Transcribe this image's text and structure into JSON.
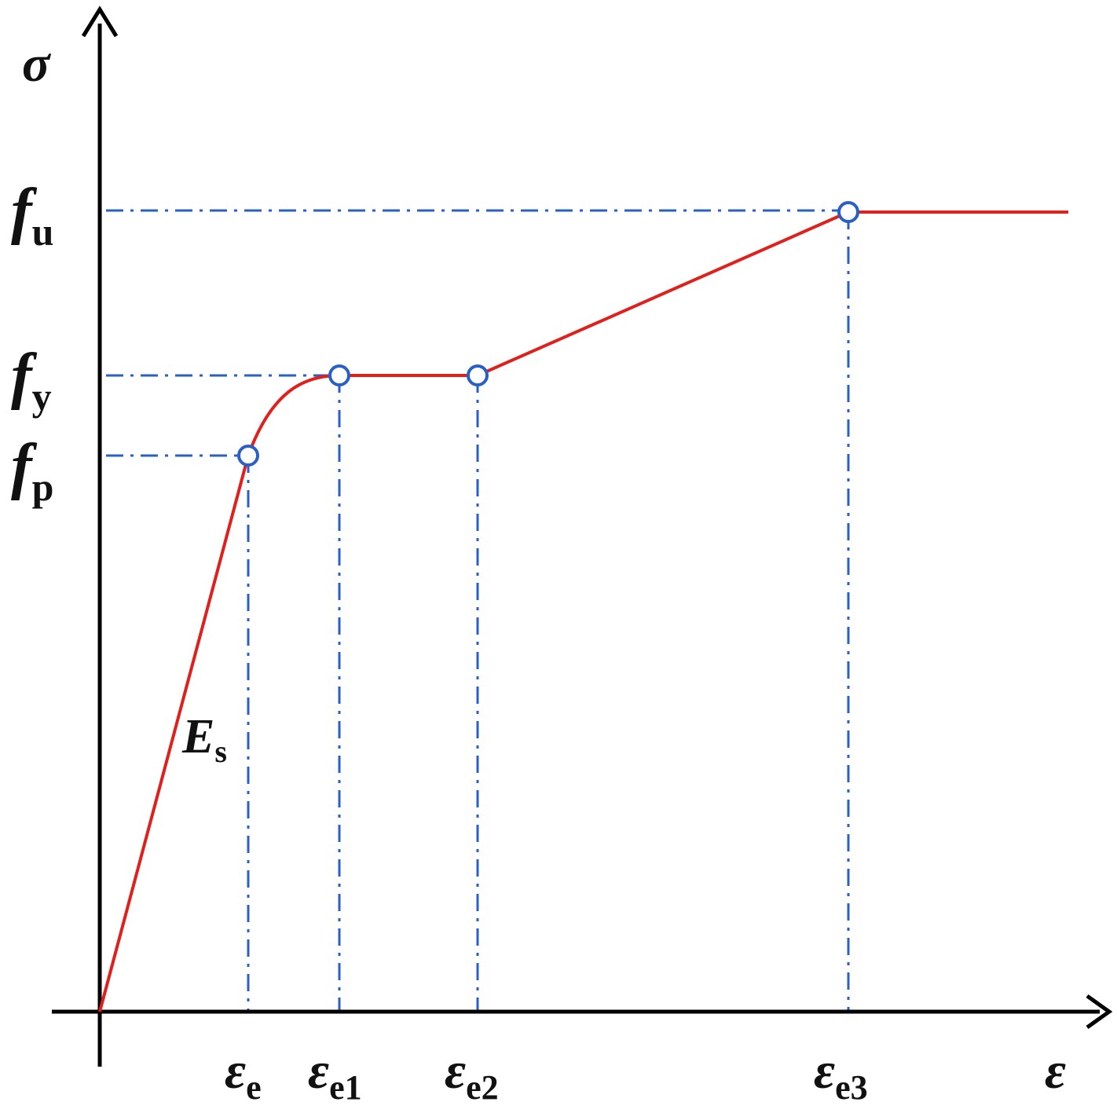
{
  "colors": {
    "axis": "#000000",
    "curve": "#e0201c",
    "guide": "#2a5fc4",
    "marker_stroke": "#2a5fc4",
    "marker_fill": "#ffffff",
    "text": "#111111"
  },
  "axes": {
    "y_label": "σ",
    "x_label": "ε"
  },
  "y_ticks": [
    {
      "id": "fu",
      "sym": "f",
      "sub": "u"
    },
    {
      "id": "fy",
      "sym": "f",
      "sub": "y"
    },
    {
      "id": "fp",
      "sym": "f",
      "sub": "p"
    }
  ],
  "x_ticks": [
    {
      "id": "e",
      "sym": "ε",
      "sub": "e"
    },
    {
      "id": "e1",
      "sym": "ε",
      "sub": "e1"
    },
    {
      "id": "e2",
      "sym": "ε",
      "sub": "e2"
    },
    {
      "id": "e3",
      "sym": "ε",
      "sub": "e3"
    }
  ],
  "modulus_label": {
    "sym": "E",
    "sub": "s"
  },
  "key_points": [
    "fp-at-e",
    "fy-at-e1",
    "fy-at-e2",
    "fu-at-e3"
  ]
}
